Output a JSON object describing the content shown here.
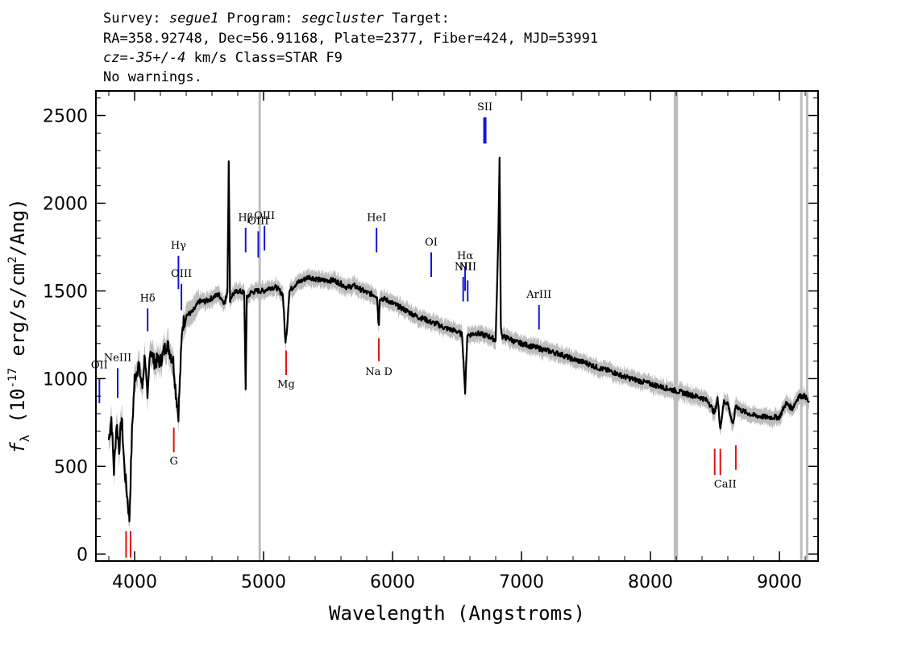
{
  "header": {
    "survey_prefix": "Survey: ",
    "survey": "segue1",
    "program_prefix": " Program: ",
    "program": "segcluster",
    "target_suffix": " Target:",
    "line2": "RA=358.92748, Dec=56.91168, Plate=2377, Fiber=424, MJD=53991",
    "cz_prefix": "cz=",
    "cz_value": "-35+/-4",
    "cz_suffix": " km/s Class=STAR F9",
    "line4": "No warnings."
  },
  "chart_data": {
    "type": "line",
    "xlabel": "Wavelength (Angstroms)",
    "ylabel": "f_λ (10^-17 erg/s/cm^2/Ang)",
    "ylabel_parts": {
      "f": "f",
      "sub": "λ",
      "pre": " (10",
      "exp1": "-17",
      "mid": " erg/s/cm",
      "exp2": "2",
      "post": "/Ang)"
    },
    "xlim": [
      3700,
      9300
    ],
    "ylim": [
      -40,
      2640
    ],
    "xticks": [
      4000,
      5000,
      6000,
      7000,
      8000,
      9000
    ],
    "yticks": [
      0,
      500,
      1000,
      1500,
      2000,
      2500
    ],
    "xtick_labels": [
      "4000",
      "5000",
      "6000",
      "7000",
      "8000",
      "9000"
    ],
    "ytick_labels": [
      "0",
      "500",
      "1000",
      "1500",
      "2000",
      "2500"
    ],
    "series": [
      {
        "name": "flux",
        "color": "#000000",
        "x": [
          3800,
          3820,
          3840,
          3860,
          3880,
          3900,
          3920,
          3940,
          3960,
          3980,
          4000,
          4030,
          4060,
          4080,
          4100,
          4120,
          4150,
          4200,
          4250,
          4300,
          4320,
          4340,
          4370,
          4400,
          4450,
          4500,
          4550,
          4600,
          4650,
          4700,
          4720,
          4730,
          4740,
          4760,
          4800,
          4850,
          4861,
          4870,
          4900,
          4950,
          5000,
          5050,
          5100,
          5150,
          5170,
          5183,
          5200,
          5250,
          5300,
          5350,
          5400,
          5450,
          5500,
          5550,
          5600,
          5650,
          5700,
          5750,
          5800,
          5850,
          5880,
          5890,
          5895,
          5900,
          5950,
          6000,
          6050,
          6100,
          6150,
          6200,
          6250,
          6300,
          6350,
          6400,
          6450,
          6500,
          6540,
          6563,
          6580,
          6600,
          6650,
          6700,
          6750,
          6800,
          6820,
          6830,
          6840,
          6850,
          6900,
          6950,
          7000,
          7050,
          7100,
          7150,
          7200,
          7300,
          7400,
          7500,
          7600,
          7700,
          7800,
          7900,
          8000,
          8100,
          8200,
          8300,
          8400,
          8450,
          8498,
          8520,
          8542,
          8570,
          8600,
          8640,
          8662,
          8700,
          8800,
          8900,
          9000,
          9050,
          9100,
          9150,
          9200,
          9230
        ],
        "y": [
          650,
          780,
          470,
          750,
          600,
          780,
          500,
          350,
          200,
          700,
          1000,
          1080,
          950,
          1150,
          850,
          1180,
          1100,
          1100,
          1200,
          1100,
          920,
          800,
          1300,
          1360,
          1380,
          1440,
          1440,
          1460,
          1480,
          1430,
          1500,
          2250,
          1450,
          1480,
          1500,
          1490,
          950,
          1460,
          1490,
          1500,
          1500,
          1520,
          1520,
          1480,
          1200,
          1300,
          1500,
          1540,
          1560,
          1580,
          1570,
          1560,
          1560,
          1560,
          1540,
          1520,
          1530,
          1510,
          1490,
          1480,
          1470,
          1330,
          1300,
          1460,
          1450,
          1430,
          1410,
          1390,
          1370,
          1350,
          1340,
          1320,
          1310,
          1290,
          1280,
          1270,
          1250,
          920,
          1250,
          1250,
          1260,
          1250,
          1240,
          1220,
          1800,
          2250,
          1300,
          1240,
          1230,
          1210,
          1200,
          1190,
          1180,
          1170,
          1160,
          1140,
          1110,
          1090,
          1060,
          1040,
          1010,
          990,
          970,
          950,
          930,
          910,
          890,
          870,
          800,
          890,
          720,
          870,
          860,
          730,
          850,
          820,
          790,
          780,
          780,
          860,
          830,
          900,
          900,
          860
        ]
      },
      {
        "name": "noise",
        "color": "#bdbdbd",
        "x": [],
        "y": []
      }
    ],
    "sky_lines": [
      4970,
      8190,
      8205,
      9170,
      9215
    ],
    "emission_lines": [
      {
        "label": "OII",
        "x": 3727,
        "y_top": 1000,
        "y_bot": 860,
        "label_y": 1060
      },
      {
        "label": "NeIII",
        "x": 3869,
        "y_top": 1060,
        "y_bot": 890,
        "label_y": 1100
      },
      {
        "label": "Hδ",
        "x": 4101,
        "y_top": 1400,
        "y_bot": 1270,
        "label_y": 1440
      },
      {
        "label": "Hγ",
        "x": 4340,
        "y_top": 1700,
        "y_bot": 1510,
        "label_y": 1740
      },
      {
        "label": "OIII",
        "x": 4363,
        "y_top": 1540,
        "y_bot": 1390,
        "label_y": 1580
      },
      {
        "label": "Hβ",
        "x": 4861,
        "y_top": 1860,
        "y_bot": 1720,
        "label_y": 1900
      },
      {
        "label": "OIII",
        "x": 4959,
        "y_top": 1840,
        "y_bot": 1690,
        "label_y": 1880
      },
      {
        "label": "OIII",
        "x": 5007,
        "y_top": 1870,
        "y_bot": 1730,
        "label_y": 1910
      },
      {
        "label": "HeI",
        "x": 5876,
        "y_top": 1860,
        "y_bot": 1720,
        "label_y": 1900
      },
      {
        "label": "OI",
        "x": 6300,
        "y_top": 1720,
        "y_bot": 1580,
        "label_y": 1760
      },
      {
        "label": "NII",
        "x": 6548,
        "y_top": 1580,
        "y_bot": 1440,
        "label_y": 1620
      },
      {
        "label": "Hα",
        "x": 6563,
        "y_top": 1640,
        "y_bot": 1500,
        "label_y": 1680
      },
      {
        "label": "NII",
        "x": 6583,
        "y_top": 1560,
        "y_bot": 1440,
        "label_y": 1620
      },
      {
        "label": "SII",
        "x": 6716,
        "y_top": 2490,
        "y_bot": 2340,
        "label_y": 2530
      },
      {
        "label": "ArIII",
        "x": 7136,
        "y_top": 1420,
        "y_bot": 1280,
        "label_y": 1460
      }
    ],
    "absorption_lines": [
      {
        "label": "",
        "x": 3934,
        "y_top": 130,
        "y_bot": -20
      },
      {
        "label": "",
        "x": 3969,
        "y_top": 130,
        "y_bot": -20
      },
      {
        "label": "G",
        "x": 4304,
        "y_top": 720,
        "y_bot": 580,
        "label_y": 510
      },
      {
        "label": "Mg",
        "x": 5175,
        "y_top": 1160,
        "y_bot": 1020,
        "label_y": 950
      },
      {
        "label": "Na D",
        "x": 5894,
        "y_top": 1230,
        "y_bot": 1100,
        "label_y": 1020
      },
      {
        "label": "",
        "x": 8498,
        "y_top": 600,
        "y_bot": 450
      },
      {
        "label": "",
        "x": 8542,
        "y_top": 600,
        "y_bot": 450
      },
      {
        "label": "",
        "x": 8662,
        "y_top": 620,
        "y_bot": 480
      },
      {
        "label": "CaII",
        "x": 8580,
        "y_top": null,
        "y_bot": null,
        "label_y": 380
      }
    ],
    "emission_color": "#1515d8",
    "absorption_color": "#e01010",
    "sky_color": "#bdbdbd"
  }
}
